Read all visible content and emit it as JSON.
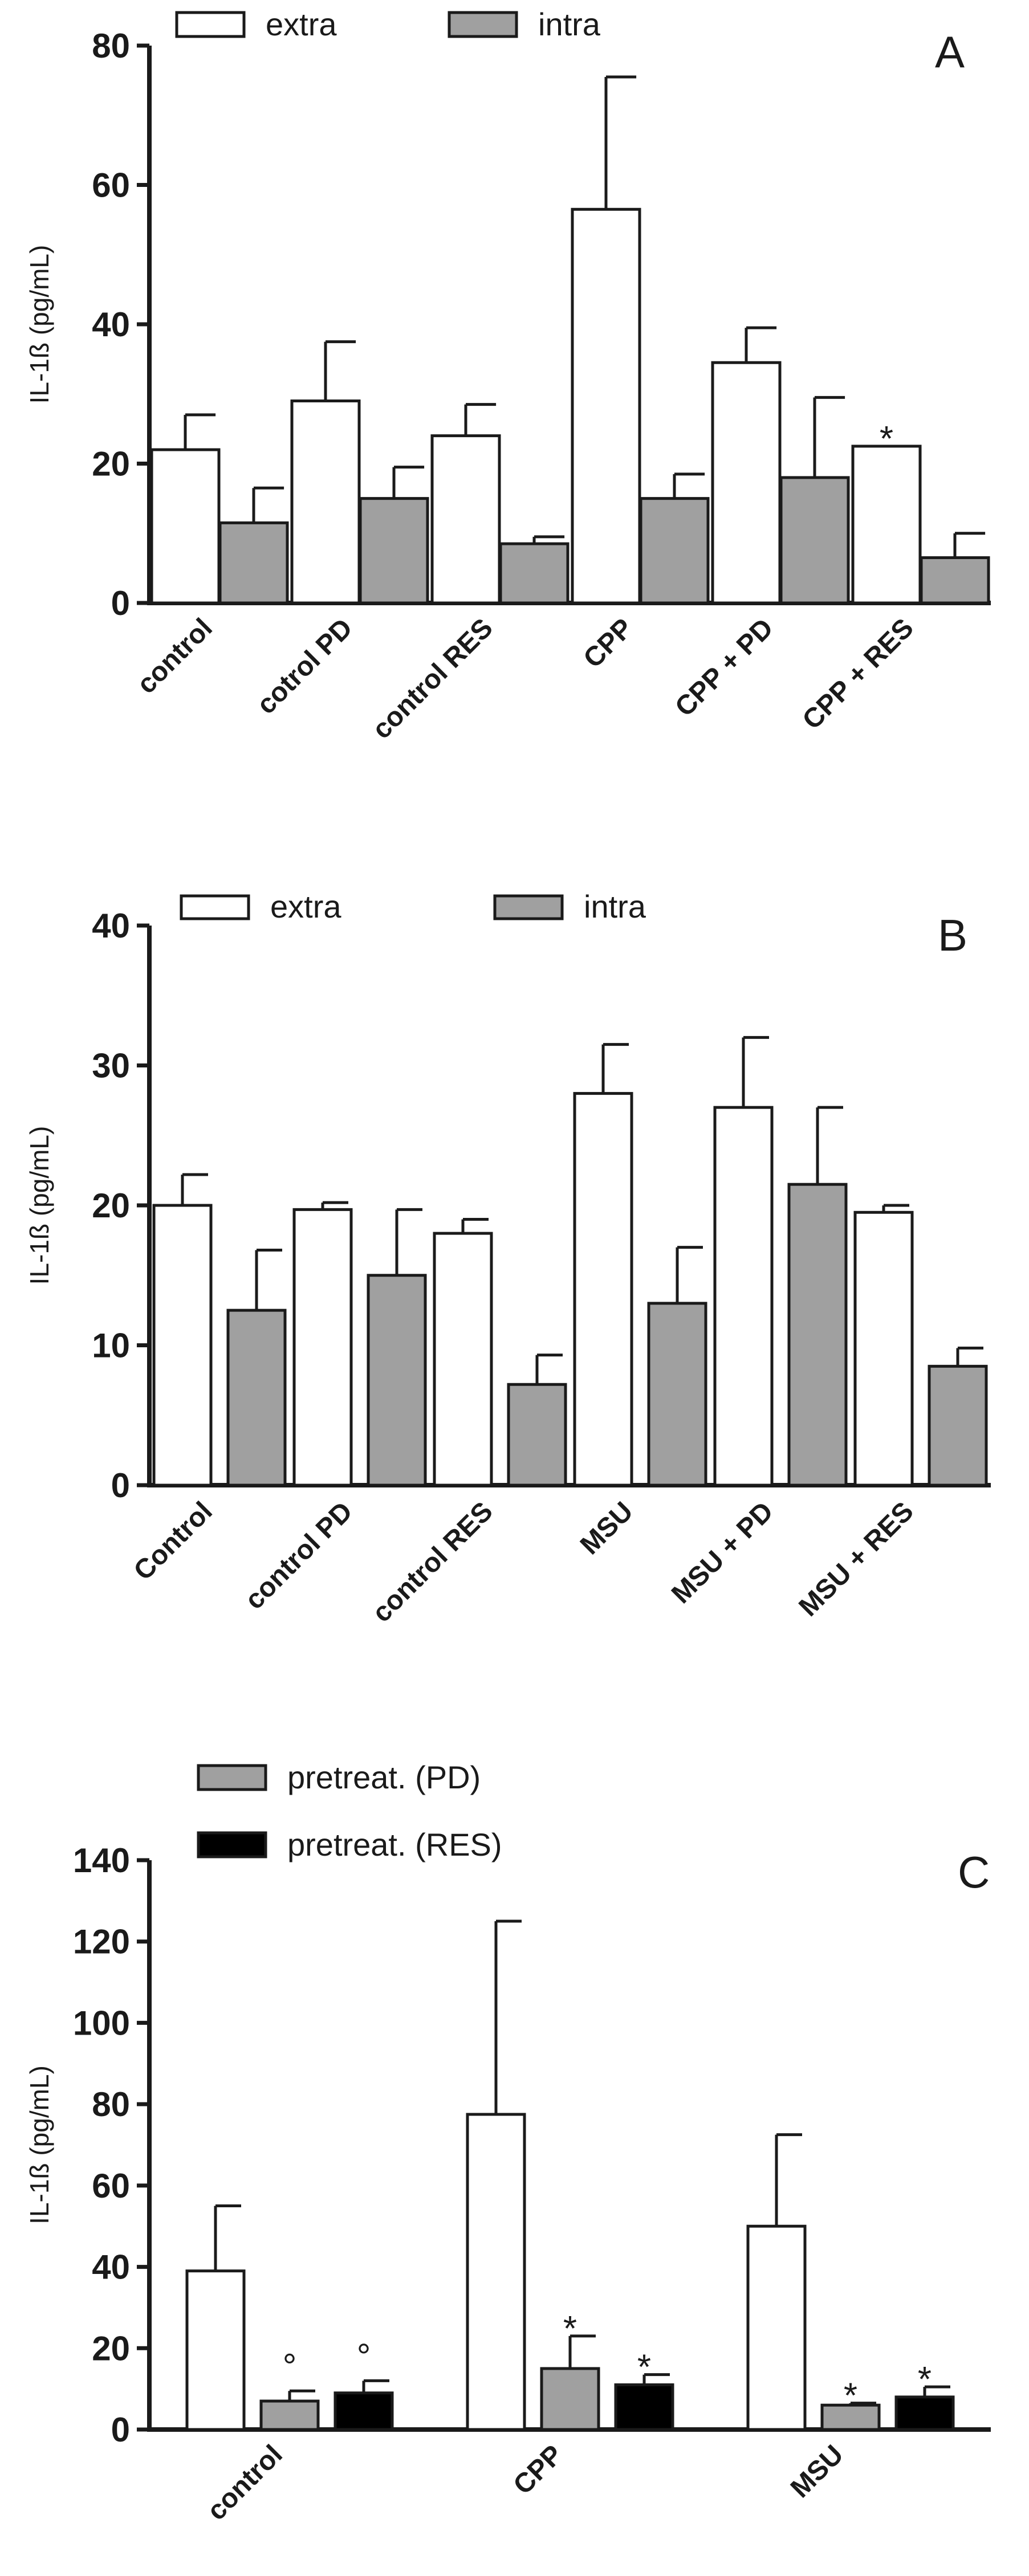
{
  "chart_data": [
    {
      "type": "bar",
      "panel_label": "A",
      "ylabel": "IL-1ß (pg/mL)",
      "ylim": [
        0,
        80
      ],
      "yticks": [
        "0",
        "20",
        "40",
        "60",
        "80"
      ],
      "categories": [
        "control",
        "cotrol PD",
        "control RES",
        "CPP",
        "CPP + PD",
        "CPP + RES"
      ],
      "series": [
        {
          "name": "extra",
          "color": "#ffffff",
          "values": [
            22,
            29,
            24,
            56.5,
            34.5,
            22.5
          ],
          "errors": [
            5,
            8.5,
            4.5,
            19,
            5,
            0
          ]
        },
        {
          "name": "intra",
          "color": "#a0a0a0",
          "values": [
            11.5,
            15,
            8.5,
            15,
            18,
            6.5
          ],
          "errors": [
            5,
            4.5,
            1,
            3.5,
            11.5,
            3.5
          ]
        }
      ],
      "annotations": [
        {
          "text": "*",
          "category": 5,
          "series": 0
        }
      ],
      "legend": "top-left",
      "grid": false
    },
    {
      "type": "bar",
      "panel_label": "B",
      "ylabel": "IL-1ß (pg/mL)",
      "ylim": [
        0,
        40
      ],
      "yticks": [
        "0",
        "10",
        "20",
        "30",
        "40"
      ],
      "categories": [
        "Control",
        "control PD",
        "control RES",
        "MSU",
        "MSU + PD",
        "MSU + RES"
      ],
      "series": [
        {
          "name": "extra",
          "color": "#ffffff",
          "values": [
            20,
            19.7,
            18,
            28,
            27,
            19.5
          ],
          "errors": [
            2.2,
            0.5,
            1,
            3.5,
            5,
            0.5
          ]
        },
        {
          "name": "intra",
          "color": "#a0a0a0",
          "values": [
            12.5,
            15,
            7.2,
            13,
            21.5,
            8.5
          ],
          "errors": [
            4.3,
            4.7,
            2.1,
            4,
            5.5,
            1.3
          ]
        }
      ],
      "annotations": [],
      "legend": "top-left",
      "grid": false
    },
    {
      "type": "bar",
      "panel_label": "C",
      "ylabel": "IL-1ß (pg/mL)",
      "ylim": [
        0,
        140
      ],
      "yticks": [
        "0",
        "20",
        "40",
        "60",
        "80",
        "100",
        "120",
        "140"
      ],
      "categories": [
        "control",
        "CPP",
        "MSU"
      ],
      "series": [
        {
          "name": "",
          "color": "#ffffff",
          "values": [
            39,
            77.5,
            50
          ],
          "errors": [
            16,
            47.5,
            22.5
          ]
        },
        {
          "name": "pretreat. (PD)",
          "color": "#a0a0a0",
          "values": [
            7,
            15,
            6
          ],
          "errors": [
            2.5,
            8,
            0.5
          ]
        },
        {
          "name": "pretreat. (RES)",
          "color": "#000000",
          "values": [
            9,
            11,
            8
          ],
          "errors": [
            3,
            2.5,
            2.5
          ]
        }
      ],
      "annotations": [
        {
          "text": "°",
          "category": 0,
          "series": 1
        },
        {
          "text": "°",
          "category": 0,
          "series": 2
        },
        {
          "text": "*",
          "category": 1,
          "series": 1
        },
        {
          "text": "*",
          "category": 1,
          "series": 2
        },
        {
          "text": "*",
          "category": 2,
          "series": 1
        },
        {
          "text": "*",
          "category": 2,
          "series": 2
        }
      ],
      "legend": "top-left",
      "grid": false
    }
  ]
}
